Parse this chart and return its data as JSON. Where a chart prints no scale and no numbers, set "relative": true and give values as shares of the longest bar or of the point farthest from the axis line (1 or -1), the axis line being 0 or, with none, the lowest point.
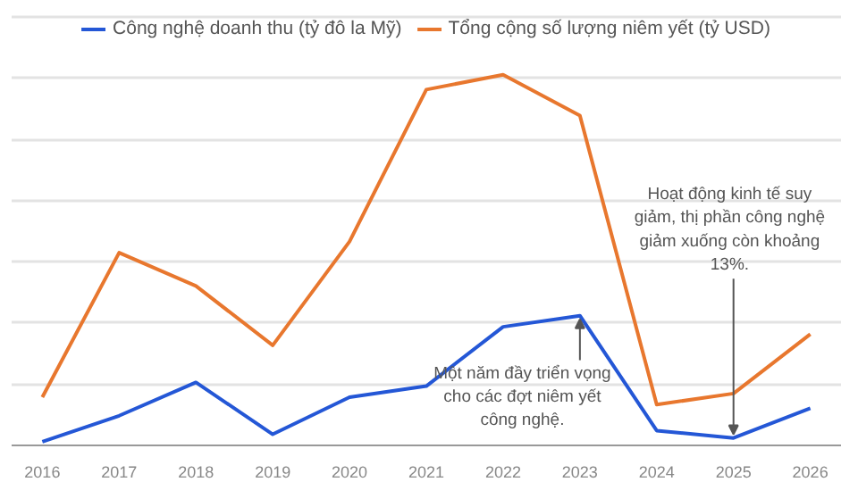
{
  "chart_data": {
    "type": "line",
    "relative": true,
    "categories": [
      "2016",
      "2017",
      "2018",
      "2019",
      "2020",
      "2021",
      "2022",
      "2023",
      "2024",
      "2025",
      "2026"
    ],
    "series": [
      {
        "name": "Công nghệ doanh thu (tỷ đô la Mỹ)",
        "color": "#2457d6",
        "values": [
          0.01,
          0.08,
          0.17,
          0.03,
          0.13,
          0.16,
          0.32,
          0.35,
          0.04,
          0.02,
          0.1
        ]
      },
      {
        "name": "Tổng cộng số lượng niêm yết (tỷ USD)",
        "color": "#e8772e",
        "values": [
          0.13,
          0.52,
          0.43,
          0.27,
          0.55,
          0.96,
          1,
          0.89,
          0.11,
          0.14,
          0.3
        ]
      }
    ],
    "annotations": [
      {
        "text": "Một năm đầy triển vọng cho các đợt niêm yết công nghệ.",
        "x": "2023",
        "y": 0.35
      },
      {
        "text": "Hoạt động kinh tế suy giảm, thị phần công nghệ giảm xuống còn khoảng 13%.",
        "x": "2025",
        "y": 0.02
      }
    ],
    "grid": "y",
    "legend": "top",
    "marker": "none",
    "line_style": "solid"
  }
}
